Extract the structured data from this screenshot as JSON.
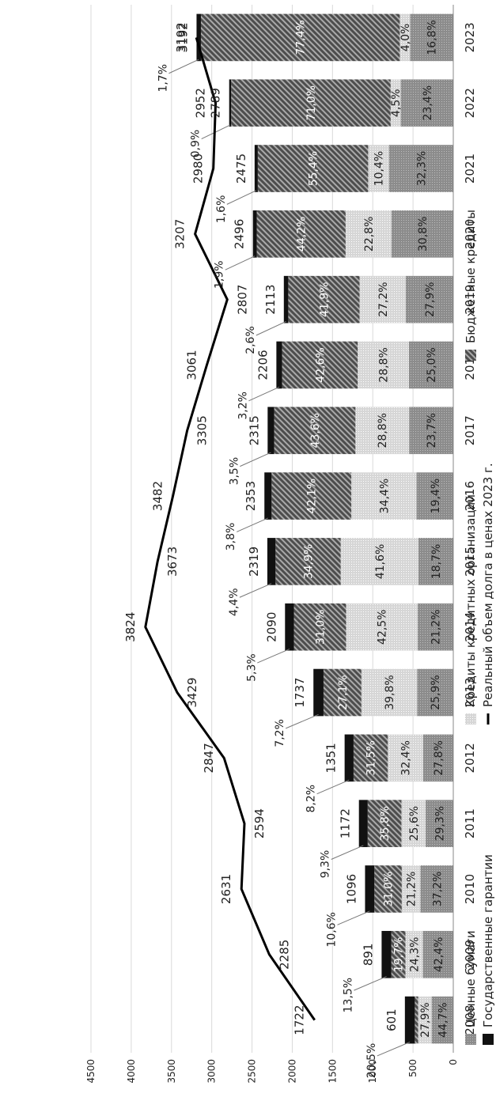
{
  "chart_data": {
    "type": "bar",
    "stacked": true,
    "orientation": "vertical, image rotated 90° counter-clockwise",
    "categories": [
      "2008",
      "2009",
      "2010",
      "2011",
      "2012",
      "2013",
      "2014",
      "2015",
      "2016",
      "2017",
      "2018",
      "2019",
      "2020",
      "2021",
      "2022",
      "2023"
    ],
    "totals": [
      601,
      891,
      1096,
      1172,
      1351,
      1737,
      2090,
      2319,
      2353,
      2315,
      2206,
      2113,
      2496,
      2475,
      2789,
      3192
    ],
    "series": [
      {
        "name": "Ценные бумаги",
        "color": "#8c8c8c",
        "shares": [
          44.7,
          42.4,
          37.2,
          29.3,
          27.8,
          25.9,
          21.2,
          18.7,
          19.4,
          23.7,
          25.0,
          27.9,
          30.8,
          32.3,
          23.4,
          16.8
        ]
      },
      {
        "name": "Кредиты кредитных организаций",
        "color": "#cfcfcf",
        "shares": [
          27.9,
          24.3,
          21.2,
          25.6,
          32.4,
          39.8,
          42.5,
          41.6,
          34.4,
          28.8,
          28.8,
          27.2,
          22.8,
          10.4,
          4.5,
          4.0
        ]
      },
      {
        "name": "Бюджетные кредиты",
        "color": "#555555",
        "shares": [
          6.9,
          19.7,
          31.0,
          35.8,
          31.5,
          27.1,
          31.0,
          34.9,
          42.1,
          43.6,
          42.6,
          41.9,
          44.2,
          55.4,
          71.0,
          77.4
        ]
      },
      {
        "name": "Государственные гарантии",
        "color": "#111111",
        "shares": [
          20.5,
          13.5,
          10.6,
          9.3,
          8.2,
          7.2,
          5.3,
          4.4,
          3.8,
          3.5,
          3.2,
          2.6,
          1.9,
          1.6,
          0.9,
          1.7
        ]
      }
    ],
    "share_labels": {
      "securities": [
        "44,7%",
        "42,4%",
        "37,2%",
        "29,3%",
        "27,8%",
        "25,9%",
        "21,2%",
        "18,7%",
        "19,4%",
        "23,7%",
        "25,0%",
        "27,9%",
        "30,8%",
        "32,3%",
        "23,4%",
        "16,8%"
      ],
      "bank_loans": [
        "27,9%",
        "24,3%",
        "21,2%",
        "25,6%",
        "32,4%",
        "39,8%",
        "42,5%",
        "41,6%",
        "34,4%",
        "28,8%",
        "28,8%",
        "27,2%",
        "22,8%",
        "10,4%",
        "4,5%",
        "4,0%"
      ],
      "budget_loans": [
        "",
        "19,7%",
        "31,0%",
        "35,8%",
        "31,5%",
        "27,1%",
        "31,0%",
        "34,9%",
        "42,1%",
        "43,6%",
        "42,6%",
        "41,9%",
        "44,2%",
        "55,4%",
        "71,0%",
        "77,4%"
      ],
      "guarantees": [
        "20,5%",
        "13,5%",
        "10,6%",
        "9,3%",
        "8,2%",
        "7,2%",
        "5,3%",
        "4,4%",
        "3,8%",
        "3,5%",
        "3,2%",
        "2,6%",
        "1,9%",
        "1,6%",
        "0,9%",
        "1,7%"
      ]
    },
    "line": {
      "name": "Реальный объем долга в ценах 2023 г.",
      "color": "#000000",
      "values": [
        1722,
        2285,
        2631,
        2594,
        2847,
        3429,
        3824,
        3673,
        3482,
        3305,
        3061,
        2807,
        3207,
        2980,
        2952,
        3192
      ]
    },
    "y_axis": {
      "ticks": [
        0,
        500,
        1000,
        1500,
        2000,
        2500,
        3000,
        3500,
        4000,
        4500
      ],
      "ylim": [
        0,
        4500
      ]
    },
    "grid": true,
    "legend": {
      "placement": "bottom",
      "items": [
        {
          "label": "Ценные бумаги",
          "kind": "securities"
        },
        {
          "label": "Кредиты кредитных организаций",
          "kind": "bank_loans"
        },
        {
          "label": "Бюджетные кредиты",
          "kind": "budget_loans"
        },
        {
          "label": "Государственные гарантии",
          "kind": "guarantees"
        },
        {
          "label": "Реальный объем долга в ценах 2023 г.",
          "kind": "line"
        }
      ]
    },
    "title": "",
    "xlabel": "",
    "ylabel": ""
  }
}
